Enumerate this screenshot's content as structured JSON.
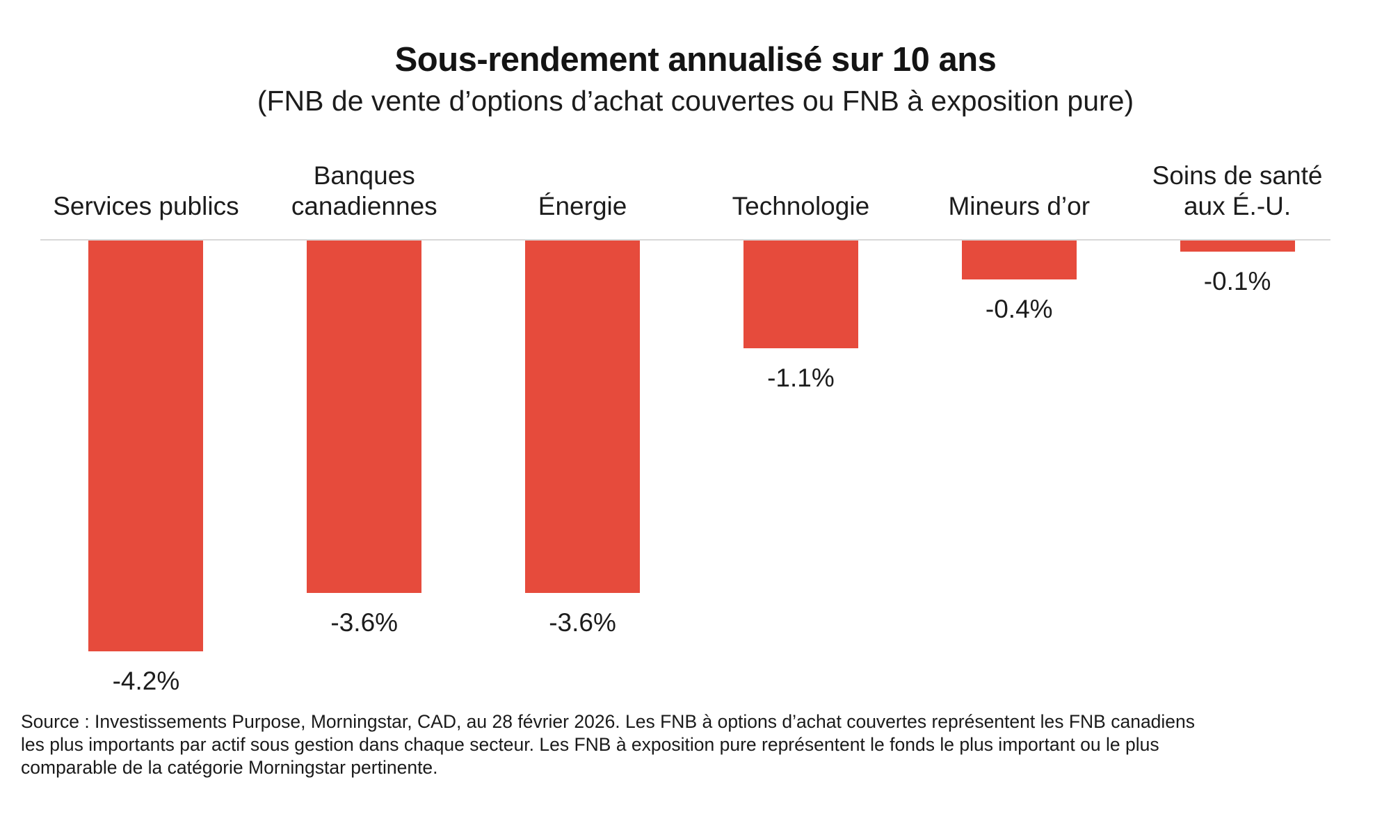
{
  "chart_data": {
    "type": "bar",
    "orientation": "vertical-negative",
    "title": "Sous-rendement annualisé sur 10 ans",
    "subtitle": "(FNB de vente d’options d’achat couvertes ou FNB à exposition pure)",
    "categories": [
      "Services publics",
      "Banques\ncanadiennes",
      "Énergie",
      "Technologie",
      "Mineurs d’or",
      "Soins de santé\naux É.-U."
    ],
    "values": [
      -4.2,
      -3.6,
      -3.6,
      -1.1,
      -0.4,
      -0.1
    ],
    "value_labels": [
      "-4.2%",
      "-3.6%",
      "-3.6%",
      "-1.1%",
      "-0.4%",
      "-0.1%"
    ],
    "unit": "%",
    "ylim": [
      -4.5,
      0
    ],
    "grid": false,
    "legend": false,
    "bar_color": "#e64b3c",
    "baseline_color": "#d8d8d8"
  },
  "source_note": {
    "lines": [
      "Source : Investissements Purpose, Morningstar, CAD, au 28 février 2026.  Les FNB à options d’achat couvertes représentent les FNB canadiens",
      "les plus importants par actif sous gestion dans chaque secteur. Les FNB à exposition pure représentent le fonds le plus important ou le plus",
      "comparable de la catégorie Morningstar pertinente."
    ]
  }
}
